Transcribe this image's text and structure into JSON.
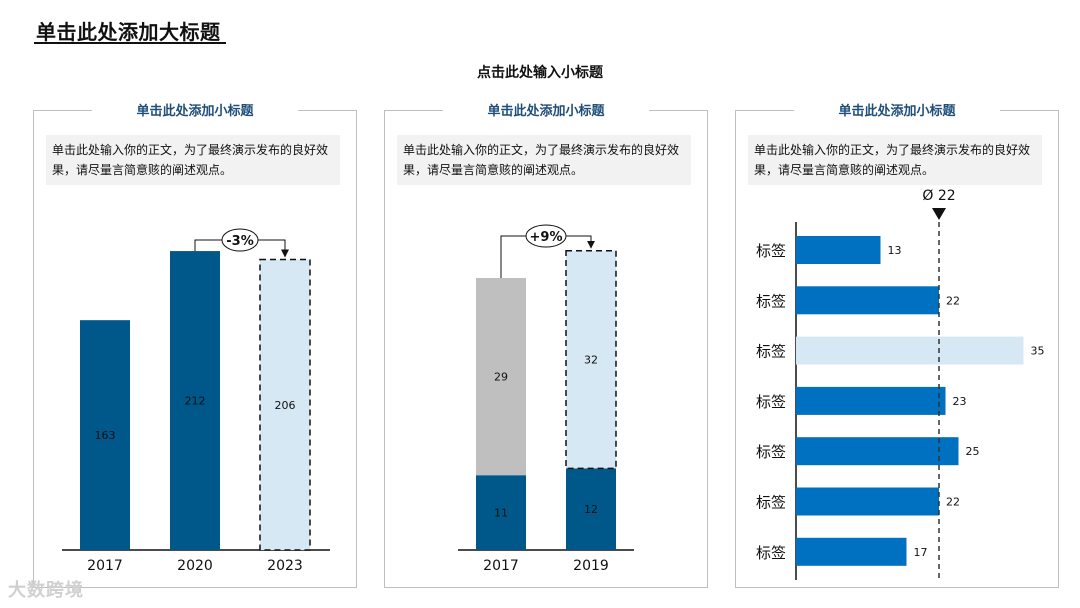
{
  "title": "单击此处添加大标题",
  "subtitle": "点击此处输入小标题",
  "watermark": "大数跨境",
  "panels": [
    {
      "title": "单击此处添加小标题",
      "text": "单击此处输入你的正文，为了最终演示发布的良好效果，请尽量言简意赅的阐述观点。"
    },
    {
      "title": "单击此处添加小标题",
      "text": "单击此处输入你的正文，为了最终演示发布的良好效果，请尽量言简意赅的阐述观点。"
    },
    {
      "title": "单击此处添加小标题",
      "text": "单击此处输入你的正文，为了最终演示发布的良好效果，请尽量言简意赅的阐述观点。"
    }
  ],
  "colors": {
    "dark_blue": "#00578a",
    "light_blue": "#d7e8f5",
    "gray": "#bfbfbf",
    "bar_blue": "#0070c0",
    "title_blue": "#1f4e79"
  },
  "chart_data": [
    {
      "type": "bar",
      "categories": [
        "2017",
        "2020",
        "2023"
      ],
      "values": [
        163,
        212,
        206
      ],
      "styles": [
        "solid",
        "solid",
        "dashed-forecast"
      ],
      "annotation": {
        "label": "-3%",
        "from": "2020",
        "to": "2023"
      }
    },
    {
      "type": "bar",
      "stacked": true,
      "categories": [
        "2017",
        "2019"
      ],
      "series": [
        {
          "values": [
            11,
            12
          ],
          "color": "#00578a"
        },
        {
          "values": [
            29,
            32
          ],
          "color": "#bfbfbf"
        }
      ],
      "annotation": {
        "label": "+9%",
        "from": "2017",
        "to": "2019"
      }
    },
    {
      "type": "bar",
      "orientation": "horizontal",
      "categories": [
        "标签",
        "标签",
        "标签",
        "标签",
        "标签",
        "标签",
        "标签"
      ],
      "values": [
        13,
        22,
        35,
        23,
        25,
        22,
        17
      ],
      "highlight_index": 2,
      "average": {
        "label": "Ø 22",
        "value": 22
      }
    }
  ]
}
